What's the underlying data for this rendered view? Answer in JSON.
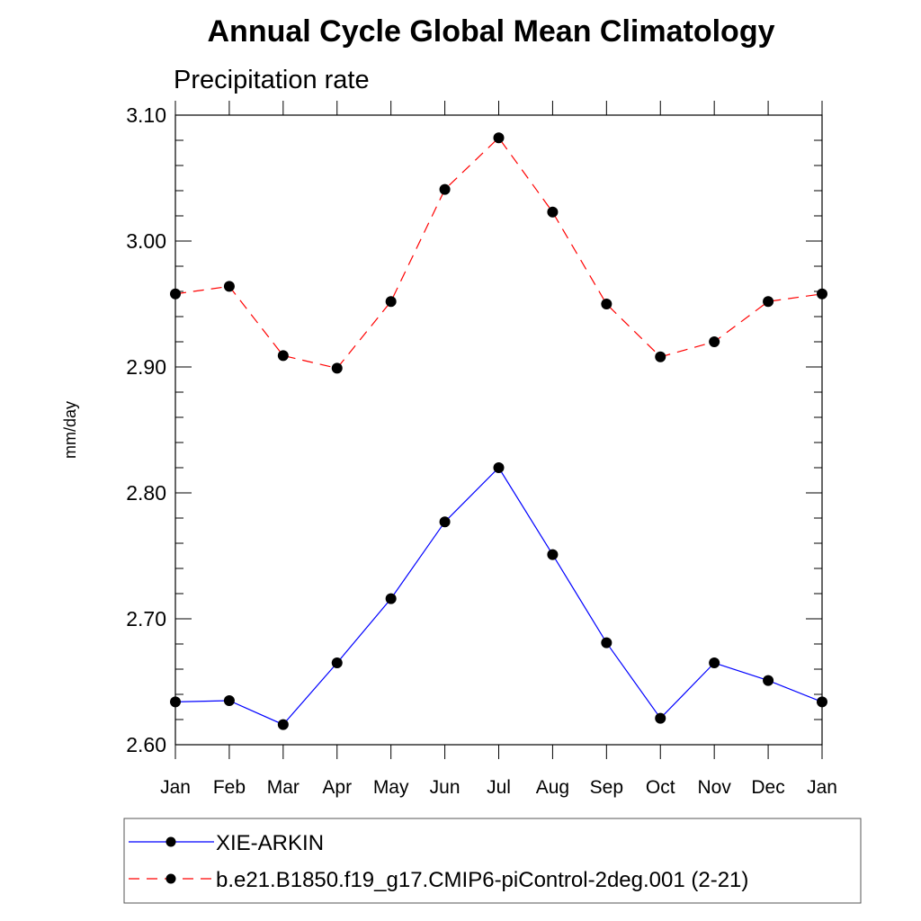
{
  "chart_data": {
    "type": "line",
    "title": "Annual Cycle Global Mean Climatology",
    "subtitle": "Precipitation rate",
    "xlabel": "",
    "ylabel": "mm/day",
    "categories": [
      "Jan",
      "Feb",
      "Mar",
      "Apr",
      "May",
      "Jun",
      "Jul",
      "Aug",
      "Sep",
      "Oct",
      "Nov",
      "Dec",
      "Jan"
    ],
    "ylim": [
      2.6,
      3.1
    ],
    "yticks": [
      "2.60",
      "2.70",
      "2.80",
      "2.90",
      "3.00",
      "3.10"
    ],
    "grid": false,
    "legend_position": "bottom",
    "series": [
      {
        "name": "XIE-ARKIN",
        "color": "#0000ff",
        "dash": "solid",
        "marker": "filled-circle",
        "values": [
          2.634,
          2.635,
          2.616,
          2.665,
          2.716,
          2.777,
          2.82,
          2.751,
          2.681,
          2.621,
          2.665,
          2.651,
          2.634
        ]
      },
      {
        "name": "b.e21.B1850.f19_g17.CMIP6-piControl-2deg.001 (2-21)",
        "color": "#ff0000",
        "dash": "dashed",
        "marker": "filled-circle",
        "values": [
          2.958,
          2.964,
          2.909,
          2.899,
          2.952,
          3.041,
          3.082,
          3.023,
          2.95,
          2.908,
          2.92,
          2.952,
          2.958
        ]
      }
    ]
  }
}
